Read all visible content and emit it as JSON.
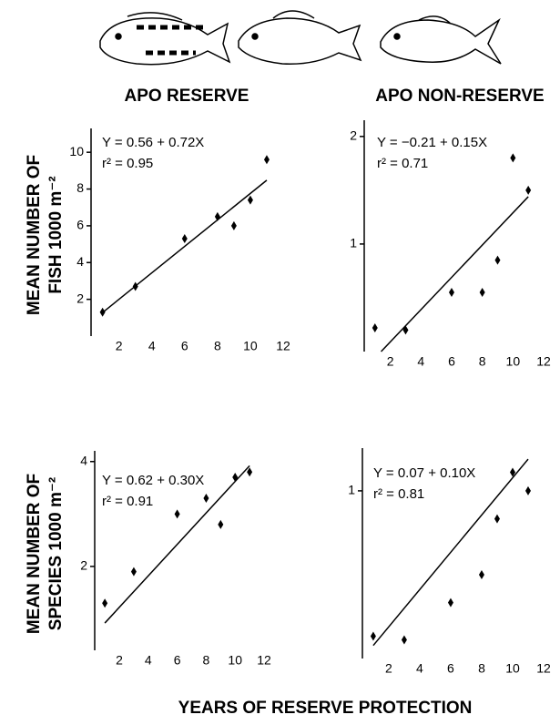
{
  "figure": {
    "column_titles": [
      "APO RESERVE",
      "APO NON-RESERVE"
    ],
    "row_labels": [
      [
        "MEAN NUMBER OF",
        "FISH 1000 m⁻²"
      ],
      [
        "MEAN NUMBER OF",
        "SPECIES 1000 m⁻²"
      ]
    ],
    "xlabel": "YEARS OF RESERVE PROTECTION"
  },
  "chart_data": [
    {
      "type": "scatter",
      "x": [
        1,
        3,
        6,
        8,
        9,
        10,
        11
      ],
      "values": [
        1.3,
        2.7,
        5.3,
        6.5,
        6.0,
        7.4,
        9.6
      ],
      "fit": {
        "label": "Y = 0.56 + 0.72X",
        "intercept": 0.56,
        "slope": 0.72
      },
      "r2_label": "r² = 0.95",
      "xlim": [
        0.3,
        12
      ],
      "xticks": [
        2,
        4,
        6,
        8,
        10,
        12
      ],
      "ylim": [
        0,
        11
      ],
      "yticks": [
        2,
        4,
        6,
        8,
        10
      ],
      "color": "#000000"
    },
    {
      "type": "scatter",
      "x": [
        1,
        3,
        6,
        8,
        9,
        10,
        11
      ],
      "values": [
        0.22,
        0.2,
        0.55,
        0.55,
        0.85,
        1.8,
        1.5
      ],
      "fit": {
        "label": "Y = −0.21 + 0.15X",
        "intercept": -0.21,
        "slope": 0.15
      },
      "r2_label": "r² = 0.71",
      "xlim": [
        0.3,
        12
      ],
      "xticks": [
        2,
        4,
        6,
        8,
        10,
        12
      ],
      "ylim": [
        0,
        2.1
      ],
      "yticks": [
        1,
        2
      ],
      "color": "#000000"
    },
    {
      "type": "scatter",
      "x": [
        1,
        3,
        6,
        8,
        9,
        10,
        11
      ],
      "values": [
        1.3,
        1.9,
        3.0,
        3.3,
        2.8,
        3.7,
        3.8
      ],
      "fit": {
        "label": "Y = 0.62 + 0.30X",
        "intercept": 0.62,
        "slope": 0.3
      },
      "r2_label": "r² = 0.91",
      "xlim": [
        0.3,
        12
      ],
      "xticks": [
        2,
        4,
        6,
        8,
        10,
        12
      ],
      "ylim": [
        0.4,
        4.1
      ],
      "yticks": [
        2,
        4
      ],
      "color": "#000000"
    },
    {
      "type": "scatter",
      "x": [
        1,
        3,
        6,
        8,
        9,
        10,
        11
      ],
      "values": [
        0.22,
        0.2,
        0.4,
        0.55,
        0.85,
        1.1,
        1.0
      ],
      "fit": {
        "label": "Y = 0.07 + 0.10X",
        "intercept": 0.07,
        "slope": 0.1
      },
      "r2_label": "r² = 0.81",
      "xlim": [
        0.3,
        12
      ],
      "xticks": [
        2,
        4,
        6,
        8,
        10,
        12
      ],
      "ylim": [
        0.1,
        1.2
      ],
      "yticks": [
        1
      ],
      "color": "#000000"
    }
  ]
}
